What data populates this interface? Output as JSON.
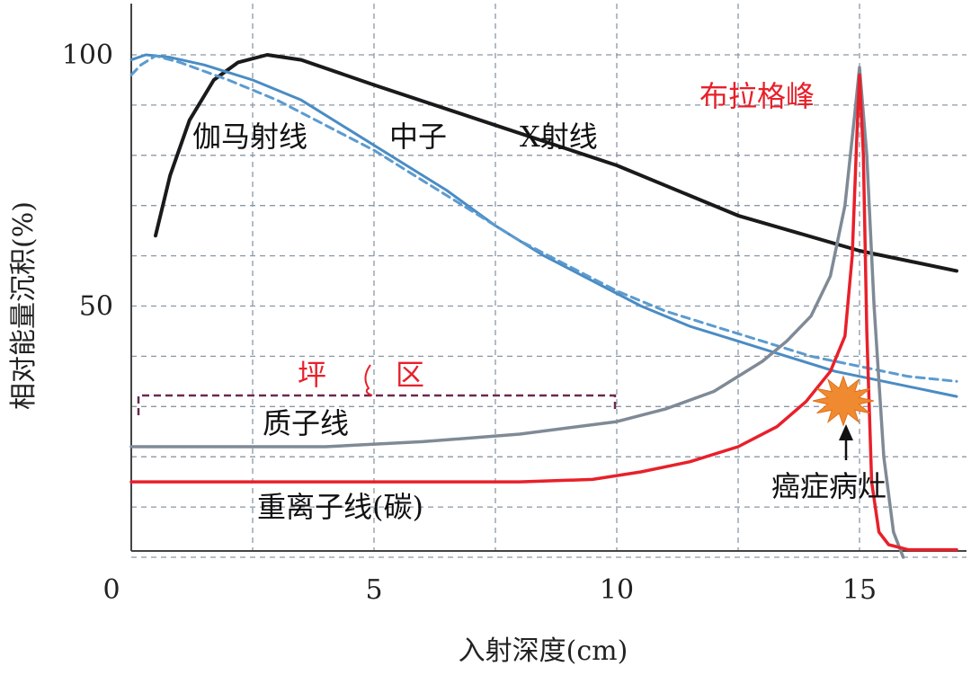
{
  "chart_data": {
    "type": "line",
    "title": "",
    "xlabel": "入射深度(cm)",
    "ylabel": "相对能量沉积(%)",
    "xlim": [
      0,
      17
    ],
    "ylim": [
      0,
      110
    ],
    "x_ticks": [
      {
        "value": 0,
        "label": "0"
      },
      {
        "value": 5,
        "label": "5"
      },
      {
        "value": 10,
        "label": "10"
      },
      {
        "value": 15,
        "label": "15"
      }
    ],
    "y_ticks": [
      {
        "value": 50,
        "label": "50"
      },
      {
        "value": 100,
        "label": "100"
      }
    ],
    "grid": true,
    "series": [
      {
        "key": "xray",
        "color": "#1a1a1a",
        "dashed": false,
        "points": [
          [
            0.5,
            64
          ],
          [
            0.8,
            76
          ],
          [
            1.2,
            87
          ],
          [
            1.7,
            95
          ],
          [
            2.2,
            98.5
          ],
          [
            2.8,
            100
          ],
          [
            3.5,
            99
          ],
          [
            5,
            94
          ],
          [
            7.5,
            86
          ],
          [
            10,
            78
          ],
          [
            12.5,
            68
          ],
          [
            15,
            61
          ],
          [
            17,
            57
          ]
        ]
      },
      {
        "key": "gamma",
        "color": "#4a8cc4",
        "dashed": false,
        "points": [
          [
            0,
            99
          ],
          [
            0.3,
            100
          ],
          [
            0.8,
            99.5
          ],
          [
            1.5,
            98
          ],
          [
            2.5,
            95
          ],
          [
            3.5,
            91
          ],
          [
            4.5,
            85
          ],
          [
            5.5,
            79
          ],
          [
            6.5,
            73
          ],
          [
            7.5,
            66
          ],
          [
            8.5,
            60
          ],
          [
            9.5,
            55
          ],
          [
            10.5,
            50
          ],
          [
            11.5,
            46
          ],
          [
            12.5,
            43
          ],
          [
            13.5,
            40
          ],
          [
            14.5,
            37
          ],
          [
            15.5,
            35
          ],
          [
            16.5,
            33
          ],
          [
            17,
            32
          ]
        ]
      },
      {
        "key": "neutron",
        "color": "#5b9bd0",
        "dashed": true,
        "points": [
          [
            0,
            96
          ],
          [
            0.2,
            98
          ],
          [
            0.5,
            99.8
          ],
          [
            1,
            98.5
          ],
          [
            2,
            95
          ],
          [
            3,
            91
          ],
          [
            4,
            86
          ],
          [
            5,
            81
          ],
          [
            6,
            75
          ],
          [
            7,
            69
          ],
          [
            8,
            63
          ],
          [
            9,
            58
          ],
          [
            10,
            53
          ],
          [
            11,
            49
          ],
          [
            12,
            46
          ],
          [
            13,
            43
          ],
          [
            14,
            40
          ],
          [
            15,
            38
          ],
          [
            16,
            36
          ],
          [
            17,
            35
          ]
        ]
      },
      {
        "key": "proton",
        "color": "#7f8a96",
        "dashed": false,
        "points": [
          [
            0,
            22
          ],
          [
            2,
            22
          ],
          [
            4,
            22
          ],
          [
            6,
            23
          ],
          [
            8,
            24.5
          ],
          [
            10,
            27
          ],
          [
            11,
            29.5
          ],
          [
            12,
            33
          ],
          [
            13,
            39
          ],
          [
            13.5,
            43
          ],
          [
            14,
            48
          ],
          [
            14.4,
            56
          ],
          [
            14.7,
            70
          ],
          [
            14.9,
            88
          ],
          [
            15,
            97.5
          ],
          [
            15.15,
            80
          ],
          [
            15.3,
            50
          ],
          [
            15.5,
            20
          ],
          [
            15.7,
            5
          ],
          [
            15.9,
            0
          ]
        ]
      },
      {
        "key": "carbon",
        "color": "#e8202a",
        "dashed": false,
        "points": [
          [
            0,
            15
          ],
          [
            4,
            15
          ],
          [
            8,
            15
          ],
          [
            9.5,
            15.5
          ],
          [
            10.5,
            17
          ],
          [
            11.5,
            19
          ],
          [
            12.5,
            22
          ],
          [
            13.3,
            26
          ],
          [
            13.9,
            31
          ],
          [
            14.4,
            37
          ],
          [
            14.7,
            44
          ],
          [
            14.85,
            60
          ],
          [
            14.95,
            85
          ],
          [
            15,
            96
          ],
          [
            15.08,
            80
          ],
          [
            15.15,
            45
          ],
          [
            15.25,
            15
          ],
          [
            15.4,
            5
          ],
          [
            15.6,
            2.5
          ],
          [
            16,
            1.5
          ],
          [
            17,
            1.5
          ]
        ]
      }
    ],
    "annotations": [
      {
        "key": "gamma_label",
        "text": "伽马射线",
        "color": "#111111"
      },
      {
        "key": "neutron_label",
        "text": "中子",
        "color": "#111111"
      },
      {
        "key": "xray_label",
        "text": "X射线",
        "color": "#111111"
      },
      {
        "key": "bragg_label",
        "text": "布拉格峰",
        "color": "#e8202a"
      },
      {
        "key": "plateau_left",
        "text": "坪",
        "color": "#e8202a"
      },
      {
        "key": "plateau_right",
        "text": "区",
        "color": "#e8202a"
      },
      {
        "key": "proton_label",
        "text": "质子线",
        "color": "#111111"
      },
      {
        "key": "carbon_label",
        "text": "重离子线(碳)",
        "color": "#111111"
      },
      {
        "key": "tumor_label",
        "text": "癌症病灶",
        "color": "#111111"
      }
    ]
  }
}
